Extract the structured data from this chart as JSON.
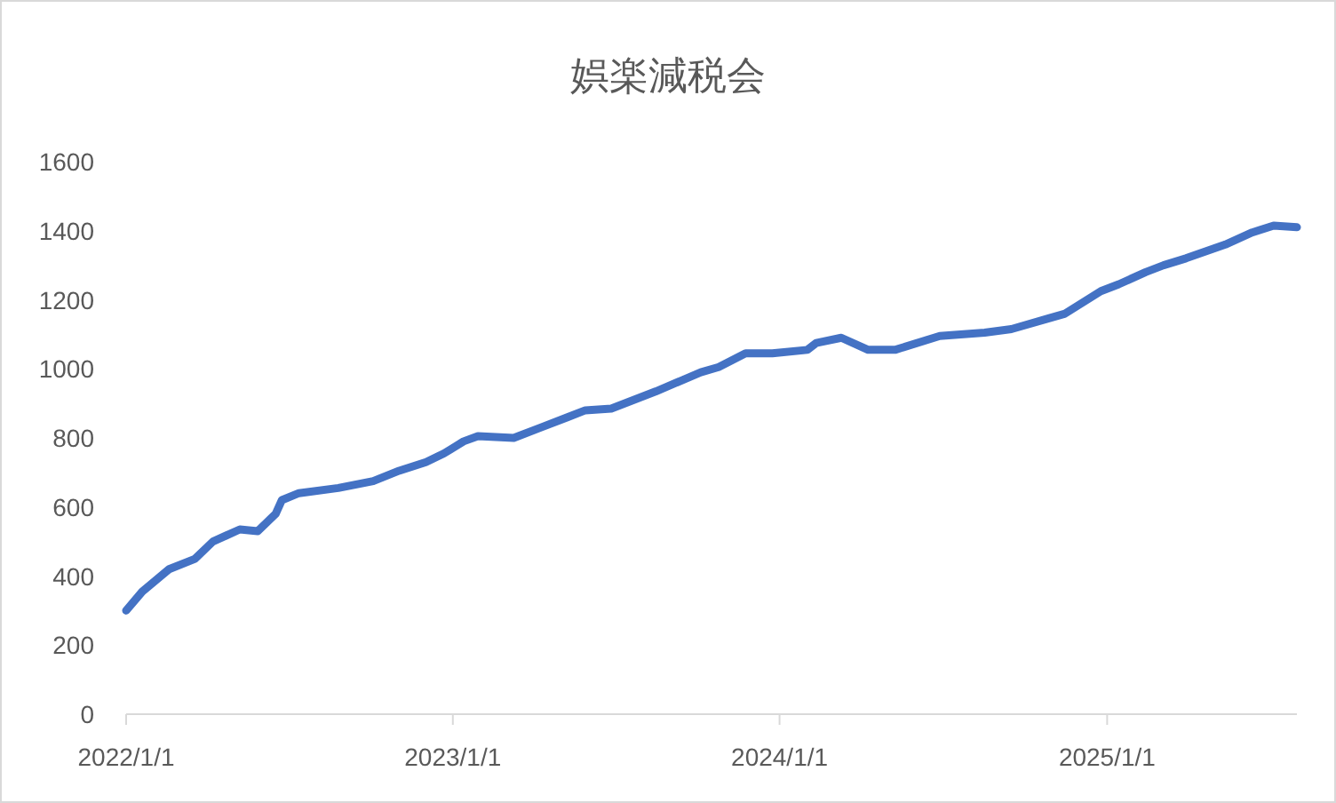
{
  "chart_data": {
    "type": "line",
    "title": "娯楽減税会",
    "x": [
      "2022-01-01",
      "2022-01-19",
      "2022-02-07",
      "2022-02-18",
      "2022-03-19",
      "2022-04-08",
      "2022-05-08",
      "2022-05-28",
      "2022-06-17",
      "2022-06-24",
      "2022-07-13",
      "2022-08-26",
      "2022-10-04",
      "2022-11-02",
      "2022-12-02",
      "2022-12-22",
      "2023-01-13",
      "2023-01-29",
      "2023-03-10",
      "2023-04-09",
      "2023-05-09",
      "2023-05-29",
      "2023-06-27",
      "2023-08-16",
      "2023-10-05",
      "2023-10-25",
      "2023-11-24",
      "2023-12-24",
      "2024-02-01",
      "2024-02-11",
      "2024-03-10",
      "2024-04-09",
      "2024-05-09",
      "2024-06-28",
      "2024-08-17",
      "2024-09-16",
      "2024-10-26",
      "2024-11-15",
      "2024-12-25",
      "2025-01-14",
      "2025-02-13",
      "2025-03-05",
      "2025-03-30",
      "2025-05-13",
      "2025-06-12",
      "2025-07-06",
      "2025-08-01"
    ],
    "series": [
      {
        "color": "#4472c4",
        "values": [
          300,
          355,
          396,
          420,
          450,
          500,
          535,
          530,
          580,
          620,
          640,
          655,
          675,
          705,
          730,
          755,
          790,
          805,
          800,
          830,
          860,
          880,
          885,
          935,
          990,
          1005,
          1045,
          1045,
          1055,
          1075,
          1090,
          1055,
          1055,
          1095,
          1105,
          1115,
          1145,
          1160,
          1225,
          1245,
          1280,
          1300,
          1320,
          1360,
          1395,
          1415,
          1410
        ]
      }
    ],
    "xlim": [
      "2022-01-01",
      "2025-08-01"
    ],
    "xticks": [
      {
        "value": "2022-01-01",
        "label": "2022/1/1"
      },
      {
        "value": "2023-01-01",
        "label": "2023/1/1"
      },
      {
        "value": "2024-01-01",
        "label": "2024/1/1"
      },
      {
        "value": "2025-01-01",
        "label": "2025/1/1"
      }
    ],
    "ylim": [
      0,
      1600
    ],
    "yticks": [
      0,
      200,
      400,
      600,
      800,
      1000,
      1200,
      1400,
      1600
    ],
    "grid": false,
    "marker": "none",
    "line_style": "solid"
  }
}
